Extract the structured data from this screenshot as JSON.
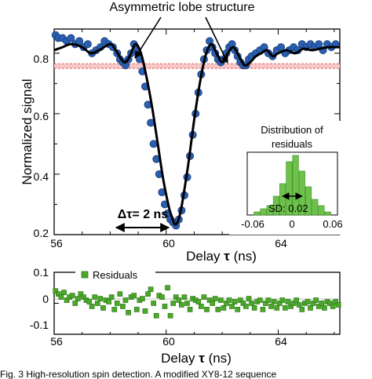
{
  "colors": {
    "data_points": "#2a5fb0",
    "data_edge": "#163c7a",
    "fit_line": "#000000",
    "noise_band": "#e06060",
    "residual": "#4aa82a",
    "residual_edge": "#2f7a17"
  },
  "chart_data": [
    {
      "type": "scatter",
      "title": "",
      "xlabel_text": "Delay",
      "xlabel_symbol": "τ",
      "xlabel_unit": "(ns)",
      "ylabel": "Normalized signal",
      "xlim": [
        56,
        66.2
      ],
      "ylim": [
        0.2,
        0.88
      ],
      "xticks": [
        "56",
        "60",
        "64"
      ],
      "yticks": [
        "0.2",
        "0.4",
        "0.6",
        "0.8"
      ],
      "annotation": "Asymmetric lobe structure",
      "delta_label": "Δτ= 2 ns",
      "noise_band": [
        0.75,
        0.765
      ],
      "fit": {
        "x": [
          56.0,
          56.3,
          56.6,
          57.0,
          57.3,
          57.6,
          58.0,
          58.2,
          58.5,
          58.7,
          58.9,
          59.1,
          59.3,
          59.5,
          59.7,
          59.9,
          60.1,
          60.2,
          60.3,
          60.4,
          60.5,
          60.6,
          60.8,
          61.0,
          61.2,
          61.4,
          61.6,
          61.8,
          62.0,
          62.2,
          62.4,
          62.6,
          62.8,
          63.0,
          63.2,
          63.4,
          63.6,
          63.8,
          64.0,
          64.3,
          64.6,
          64.9,
          65.2,
          65.5,
          65.8,
          66.2
        ],
        "y": [
          0.81,
          0.82,
          0.83,
          0.82,
          0.8,
          0.81,
          0.83,
          0.81,
          0.77,
          0.79,
          0.83,
          0.8,
          0.72,
          0.62,
          0.5,
          0.38,
          0.29,
          0.26,
          0.235,
          0.24,
          0.27,
          0.32,
          0.44,
          0.58,
          0.7,
          0.79,
          0.83,
          0.8,
          0.77,
          0.8,
          0.82,
          0.79,
          0.76,
          0.77,
          0.79,
          0.8,
          0.81,
          0.79,
          0.8,
          0.81,
          0.8,
          0.815,
          0.81,
          0.815,
          0.82,
          0.82
        ]
      },
      "series": [
        {
          "x": [
            56.05,
            56.15,
            56.3,
            56.45,
            56.6,
            56.75,
            56.9,
            57.05,
            57.2,
            57.35,
            57.5,
            57.65,
            57.8,
            57.95,
            58.1,
            58.25,
            58.35,
            58.45,
            58.55,
            58.65,
            58.75,
            58.85,
            58.95,
            59.05,
            59.15,
            59.25,
            59.35,
            59.45,
            59.55,
            59.65,
            59.75,
            59.85,
            59.95,
            60.05,
            60.15,
            60.25,
            60.35,
            60.45,
            60.55,
            60.65,
            60.75,
            60.85,
            60.95,
            61.05,
            61.15,
            61.25,
            61.35,
            61.45,
            61.55,
            61.65,
            61.75,
            61.85,
            61.95,
            62.05,
            62.15,
            62.25,
            62.35,
            62.45,
            62.55,
            62.65,
            62.75,
            62.85,
            62.95,
            63.05,
            63.2,
            63.35,
            63.5,
            63.65,
            63.8,
            63.95,
            64.1,
            64.25,
            64.4,
            64.55,
            64.7,
            64.85,
            65.0,
            65.15,
            65.3,
            65.45,
            65.6,
            65.75,
            65.9,
            66.05
          ],
          "y": [
            0.86,
            0.85,
            0.85,
            0.84,
            0.85,
            0.83,
            0.84,
            0.82,
            0.83,
            0.8,
            0.81,
            0.82,
            0.84,
            0.83,
            0.82,
            0.8,
            0.78,
            0.77,
            0.76,
            0.78,
            0.8,
            0.83,
            0.81,
            0.78,
            0.74,
            0.69,
            0.63,
            0.57,
            0.5,
            0.45,
            0.4,
            0.34,
            0.3,
            0.27,
            0.25,
            0.24,
            0.23,
            0.25,
            0.28,
            0.33,
            0.39,
            0.46,
            0.53,
            0.6,
            0.67,
            0.73,
            0.78,
            0.81,
            0.84,
            0.82,
            0.8,
            0.78,
            0.77,
            0.78,
            0.8,
            0.82,
            0.83,
            0.81,
            0.79,
            0.77,
            0.76,
            0.76,
            0.78,
            0.79,
            0.8,
            0.81,
            0.82,
            0.8,
            0.79,
            0.81,
            0.82,
            0.8,
            0.81,
            0.82,
            0.81,
            0.83,
            0.82,
            0.83,
            0.82,
            0.83,
            0.81,
            0.83,
            0.82,
            0.83
          ]
        }
      ]
    },
    {
      "type": "bar",
      "title": "Distribution of residuals",
      "xticks": [
        "-0.06",
        "0",
        "0.06"
      ],
      "xlim": [
        -0.07,
        0.07
      ],
      "sd_label": "SD: 0.02",
      "bins": [
        -0.055,
        -0.045,
        -0.035,
        -0.025,
        -0.015,
        -0.005,
        0.005,
        0.015,
        0.025,
        0.035,
        0.045,
        0.055
      ],
      "values": [
        1,
        2,
        3,
        6,
        10,
        17,
        19,
        14,
        9,
        5,
        3,
        1
      ]
    },
    {
      "type": "scatter",
      "legend": "Residuals",
      "xlabel_text": "Delay",
      "xlabel_symbol": "τ",
      "xlabel_unit": "(ns)",
      "xlim": [
        56,
        66.2
      ],
      "ylim": [
        -0.1,
        0.1
      ],
      "xticks": [
        "56",
        "60",
        "64"
      ],
      "yticks": [
        "-0.1",
        "0",
        "0.1"
      ],
      "series": [
        {
          "x": [
            56.05,
            56.15,
            56.25,
            56.35,
            56.45,
            56.55,
            56.65,
            56.75,
            56.85,
            56.95,
            57.05,
            57.15,
            57.25,
            57.35,
            57.45,
            57.55,
            57.65,
            57.75,
            57.85,
            57.95,
            58.05,
            58.15,
            58.25,
            58.35,
            58.45,
            58.55,
            58.65,
            58.75,
            58.85,
            58.95,
            59.05,
            59.15,
            59.25,
            59.35,
            59.45,
            59.55,
            59.65,
            59.75,
            59.85,
            59.95,
            60.05,
            60.15,
            60.25,
            60.35,
            60.45,
            60.55,
            60.65,
            60.75,
            60.85,
            60.95,
            61.05,
            61.15,
            61.25,
            61.35,
            61.45,
            61.55,
            61.65,
            61.75,
            61.85,
            61.95,
            62.05,
            62.15,
            62.25,
            62.35,
            62.45,
            62.55,
            62.65,
            62.75,
            62.85,
            62.95,
            63.05,
            63.15,
            63.25,
            63.35,
            63.45,
            63.55,
            63.65,
            63.75,
            63.85,
            63.95,
            64.05,
            64.15,
            64.25,
            64.35,
            64.45,
            64.55,
            64.65,
            64.75,
            64.85,
            64.95,
            65.05,
            65.15,
            65.25,
            65.35,
            65.45,
            65.55,
            65.65,
            65.75,
            65.85,
            65.95,
            66.05,
            66.15
          ],
          "y": [
            0.04,
            0.03,
            0.02,
            0.035,
            0.01,
            0.02,
            0.025,
            0.0,
            0.015,
            0.03,
            0.02,
            0.01,
            0.005,
            -0.01,
            0.02,
            0.0,
            0.015,
            -0.015,
            0.01,
            0.005,
            0.02,
            -0.02,
            0.0,
            0.03,
            -0.01,
            0.01,
            -0.03,
            0.02,
            0.025,
            -0.02,
            0.01,
            0.015,
            -0.025,
            0.03,
            0.045,
            0.0,
            -0.04,
            0.025,
            0.02,
            -0.01,
            0.05,
            -0.04,
            0.0,
            0.02,
            0.01,
            -0.005,
            0.02,
            0.0,
            -0.02,
            0.015,
            0.01,
            0.005,
            -0.01,
            0.02,
            -0.02,
            0.01,
            0.0,
            0.015,
            -0.02,
            0.01,
            -0.015,
            0.0,
            0.01,
            -0.01,
            0.005,
            -0.02,
            0.01,
            0.0,
            -0.01,
            0.015,
            0.0,
            -0.015,
            0.005,
            0.01,
            -0.02,
            0.0,
            0.01,
            -0.01,
            0.005,
            -0.015,
            0.0,
            0.01,
            -0.015,
            0.005,
            -0.01,
            0.0,
            0.01,
            -0.005,
            -0.02,
            0.0,
            0.005,
            -0.015,
            0.0,
            0.01,
            -0.01,
            0.0,
            -0.015,
            0.005,
            0.0,
            -0.01,
            0.005,
            -0.005
          ]
        }
      ]
    }
  ],
  "caption": "Fig. 3 High-resolution spin detection. A modified XY8-12 sequence"
}
